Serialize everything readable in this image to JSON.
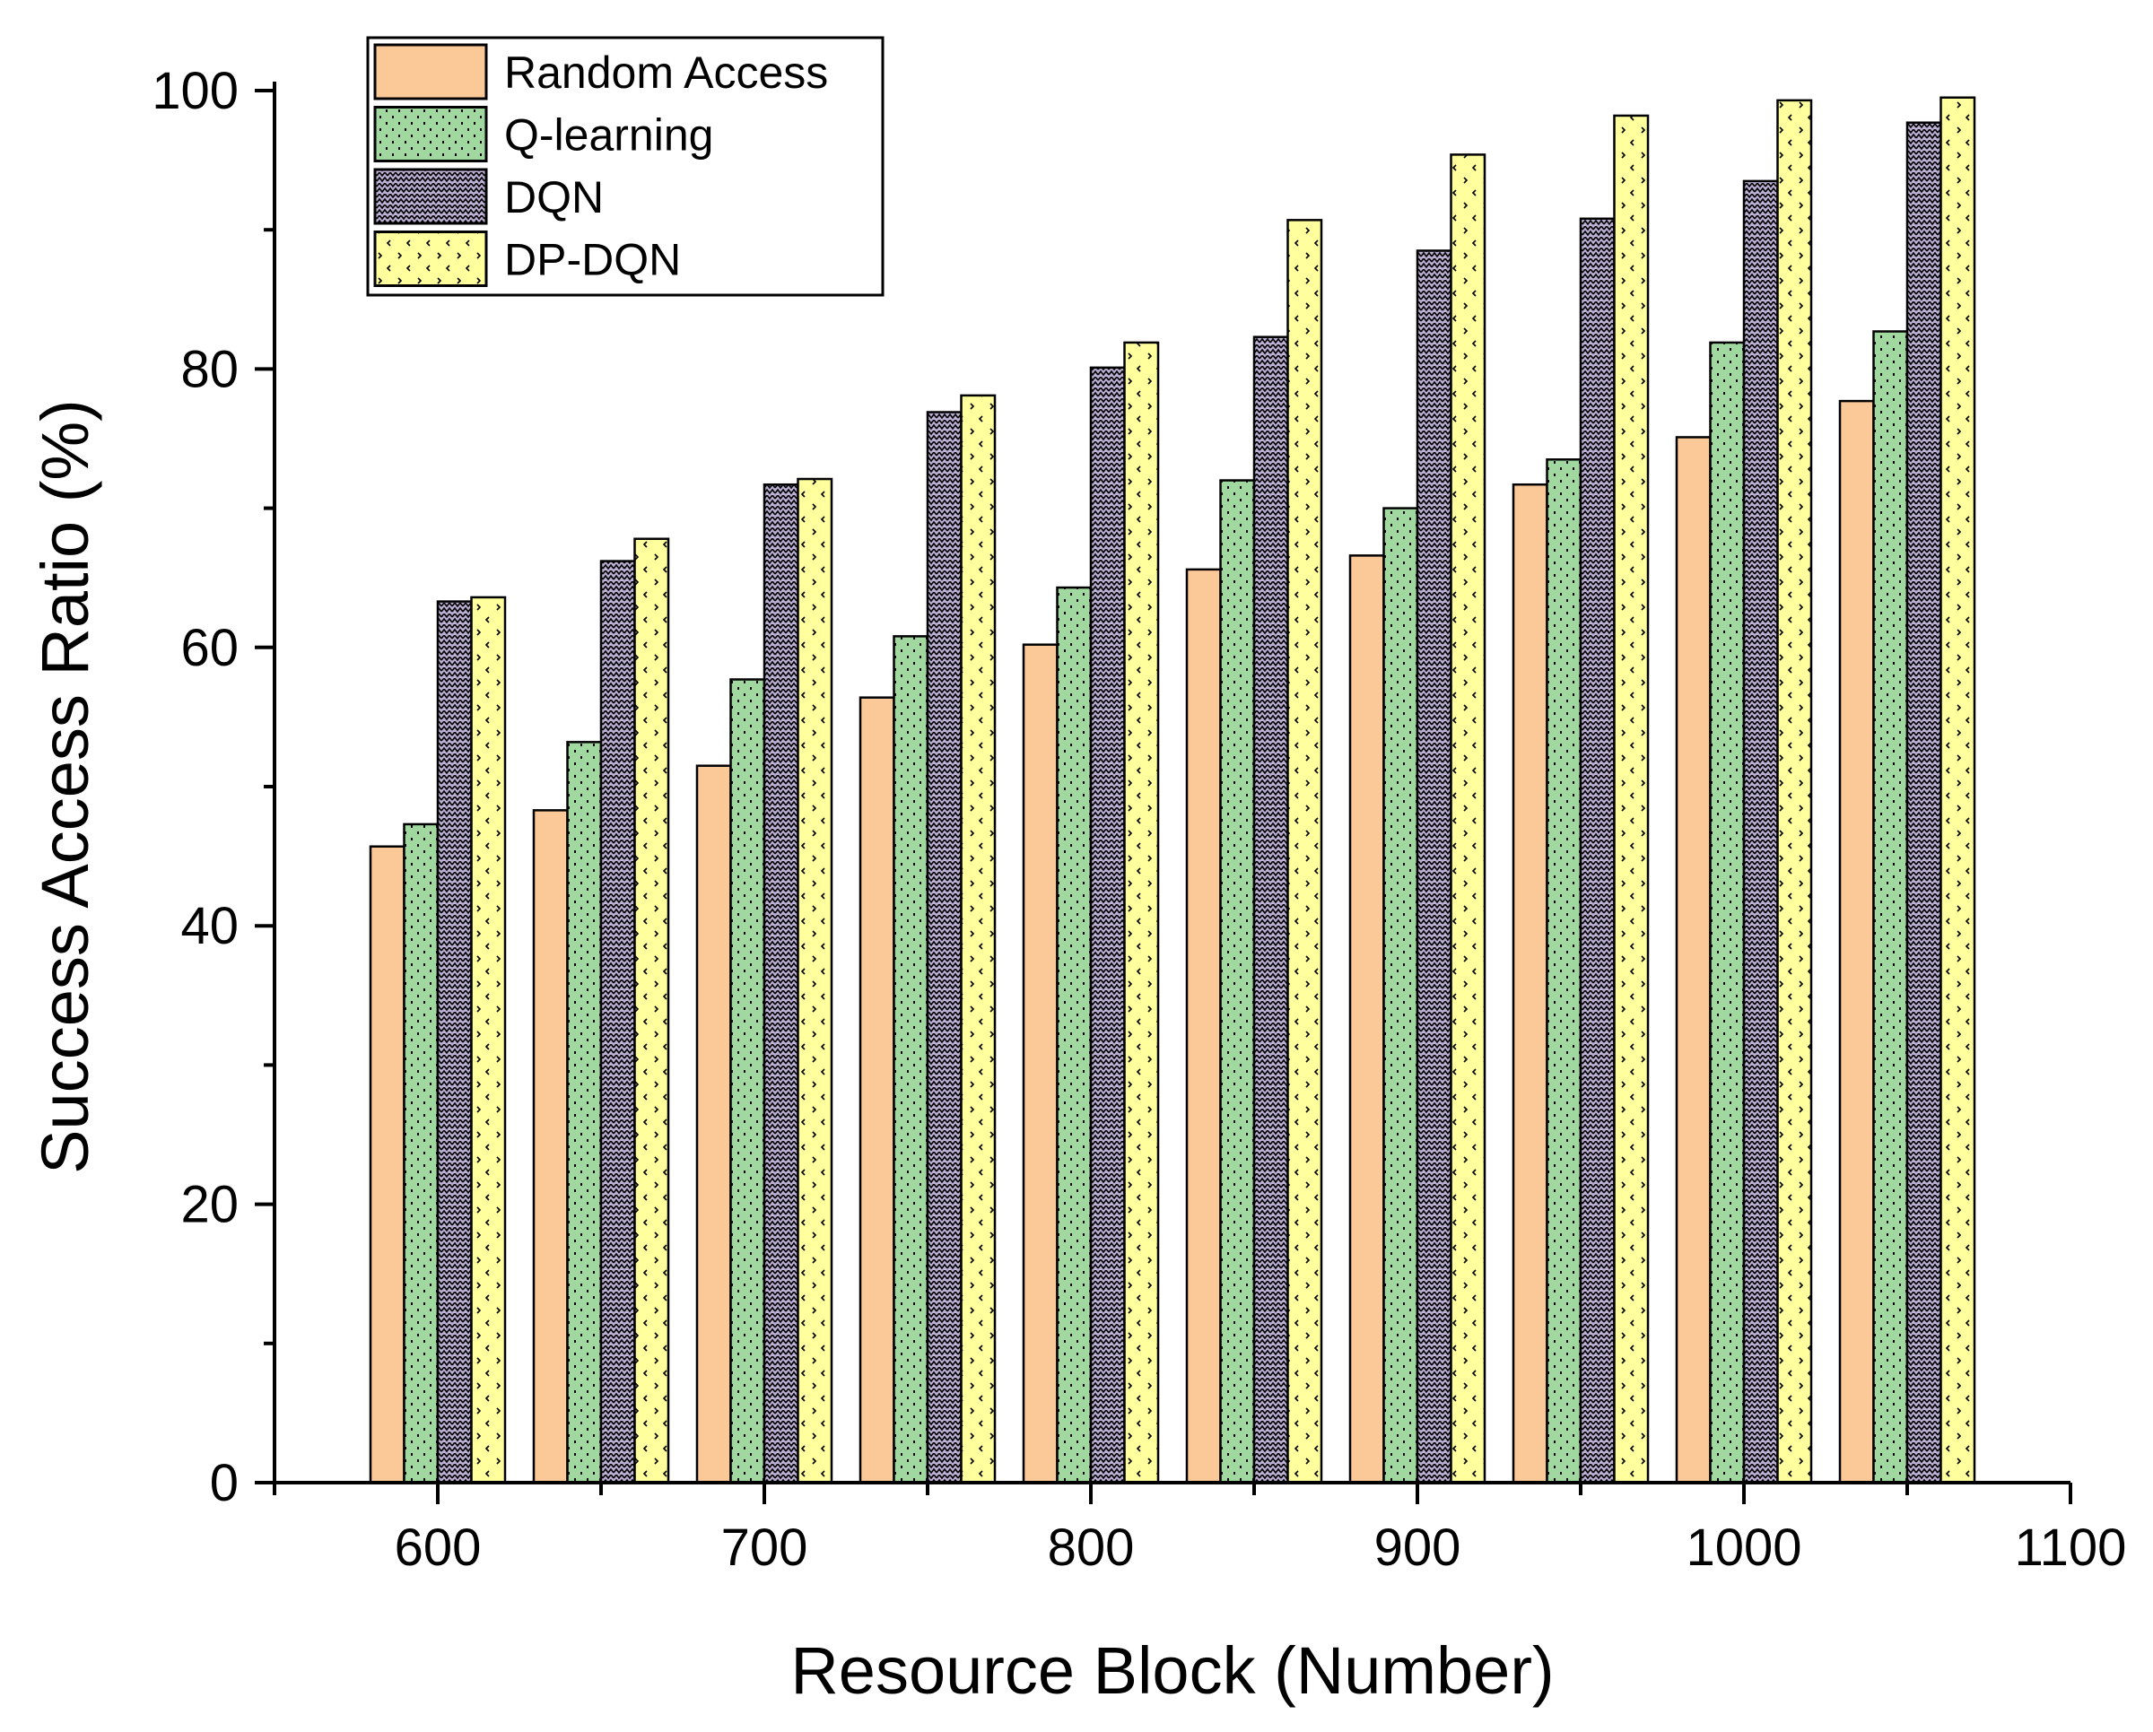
{
  "chart_data": {
    "type": "bar",
    "title": "",
    "xlabel": "Resource Block (Number)",
    "ylabel": "Success Access Ratio (%)",
    "xlim": [
      550,
      1100
    ],
    "ylim": [
      0,
      100
    ],
    "x_ticks": [
      "600",
      "700",
      "800",
      "900",
      "1000",
      "1100"
    ],
    "y_ticks": [
      "0",
      "20",
      "40",
      "60",
      "80",
      "100"
    ],
    "grid": false,
    "legend_position": "top-left",
    "categories": [
      600,
      650,
      700,
      750,
      800,
      850,
      900,
      950,
      1000,
      1050
    ],
    "series": [
      {
        "name": "Random Access",
        "color": "#FBC898",
        "pattern": "solid",
        "values": [
          45.7,
          48.3,
          51.5,
          56.4,
          60.2,
          65.6,
          66.6,
          71.7,
          75.1,
          77.7
        ]
      },
      {
        "name": "Q-learning",
        "color": "#A0D8A0",
        "pattern": "dots",
        "values": [
          47.3,
          53.2,
          57.7,
          60.8,
          64.3,
          72.0,
          70.0,
          73.5,
          81.9,
          82.7
        ]
      },
      {
        "name": "DQN",
        "color": "#BDB1D6",
        "pattern": "zigzag",
        "values": [
          63.3,
          66.2,
          71.7,
          76.9,
          80.1,
          82.3,
          88.5,
          90.8,
          93.5,
          97.7
        ]
      },
      {
        "name": "DP-DQN",
        "color": "#FFFF9E",
        "pattern": "chevrons",
        "values": [
          63.6,
          67.8,
          72.1,
          78.1,
          81.9,
          90.7,
          95.4,
          98.2,
          99.3,
          99.5
        ]
      }
    ]
  }
}
